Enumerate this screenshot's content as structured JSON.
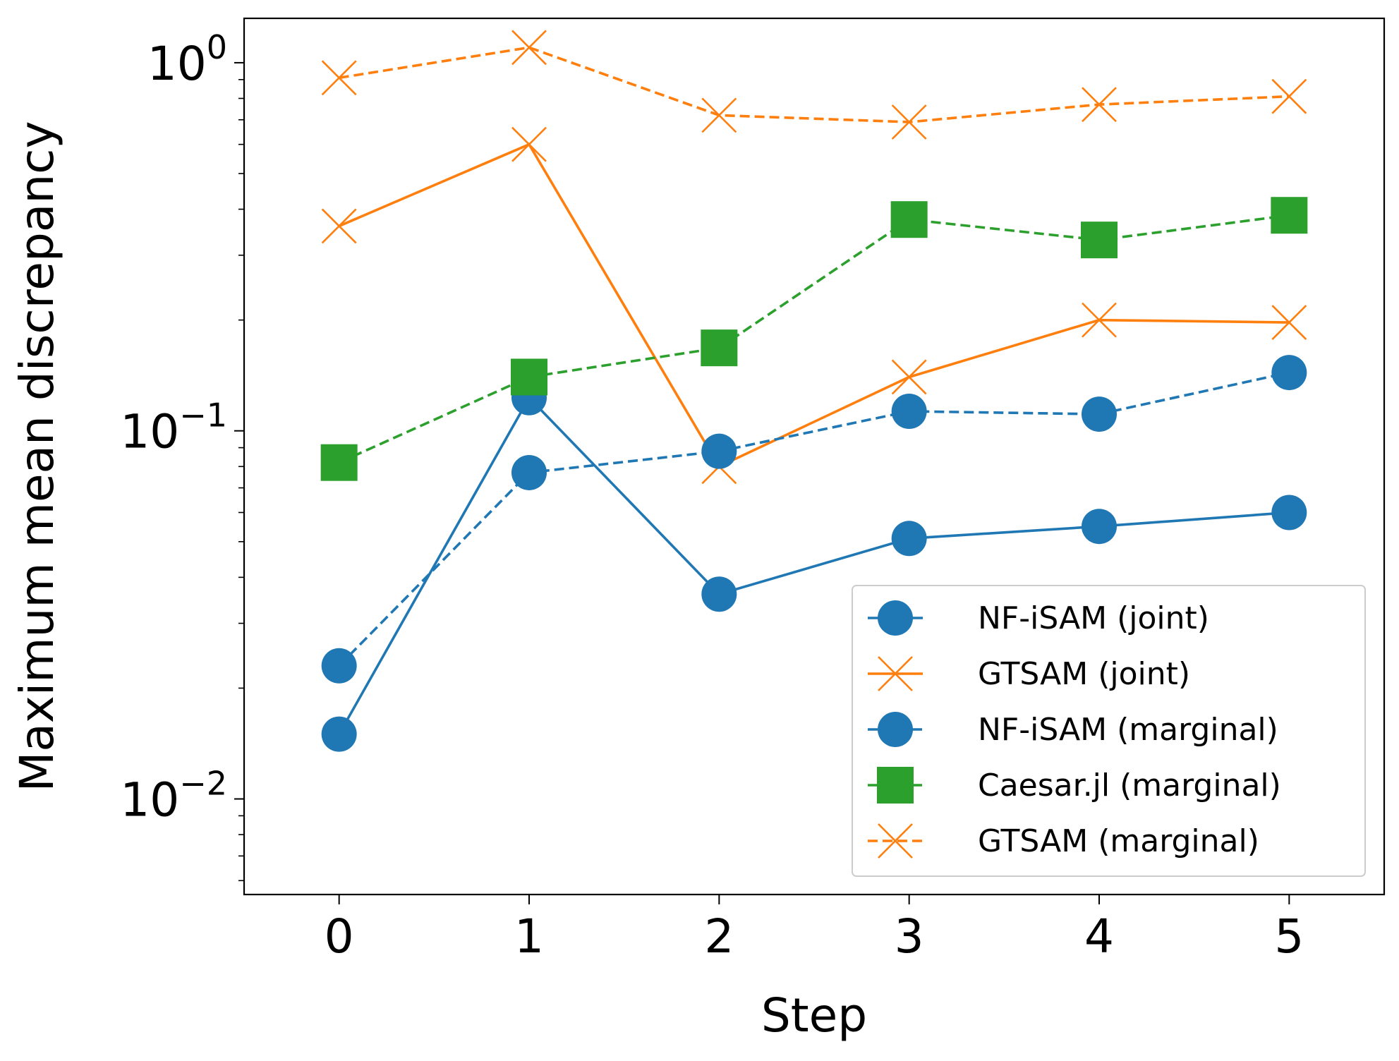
{
  "chart_data": {
    "type": "line",
    "xlabel": "Step",
    "ylabel": "Maximum mean discrepancy",
    "y_scale": "log",
    "x": [
      0,
      1,
      2,
      3,
      4,
      5
    ],
    "xlim": [
      -0.5,
      5.5
    ],
    "ylim": [
      0.0055,
      1.32
    ],
    "x_ticks": [
      "0",
      "1",
      "2",
      "3",
      "4",
      "5"
    ],
    "y_ticks": [
      {
        "value": 1,
        "mantissa": "10",
        "exp": "0"
      },
      {
        "value": 0.1,
        "mantissa": "10",
        "exp": "−1"
      },
      {
        "value": 0.01,
        "mantissa": "10",
        "exp": "−2"
      }
    ],
    "grid": false,
    "legend_position": "lower-right",
    "series": [
      {
        "name": "NF-iSAM (joint)",
        "values": [
          0.015,
          0.123,
          0.036,
          0.051,
          0.055,
          0.06
        ],
        "color": "#1f77b4",
        "linestyle": "solid",
        "marker": "circle"
      },
      {
        "name": "GTSAM (joint)",
        "values": [
          0.36,
          0.6,
          0.08,
          0.14,
          0.2,
          0.197
        ],
        "color": "#ff7f0e",
        "linestyle": "solid",
        "marker": "x"
      },
      {
        "name": "NF-iSAM (marginal)",
        "values": [
          0.023,
          0.077,
          0.088,
          0.113,
          0.111,
          0.144
        ],
        "color": "#1f77b4",
        "linestyle": "dashed",
        "marker": "circle"
      },
      {
        "name": "Caesar.jl (marginal)",
        "values": [
          0.082,
          0.14,
          0.168,
          0.375,
          0.33,
          0.385
        ],
        "color": "#2ca02c",
        "linestyle": "dashed",
        "marker": "square"
      },
      {
        "name": "GTSAM (marginal)",
        "values": [
          0.91,
          1.1,
          0.72,
          0.69,
          0.77,
          0.81
        ],
        "color": "#ff7f0e",
        "linestyle": "dashed",
        "marker": "x"
      }
    ]
  }
}
